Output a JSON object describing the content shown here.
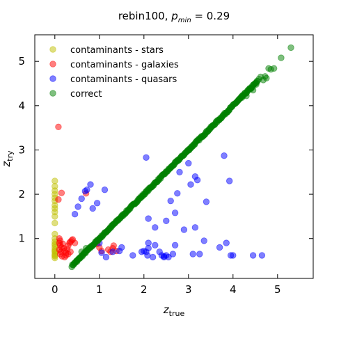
{
  "chart_data": {
    "type": "scatter",
    "title_main": "rebin100, ",
    "title_p": "p",
    "title_sub": "min",
    "title_val": " = 0.29",
    "xlabel_main": "z",
    "xlabel_sub": "true",
    "ylabel_main": "z",
    "ylabel_sub": "try",
    "xlim": [
      -0.45,
      5.8
    ],
    "ylim": [
      0.1,
      5.6
    ],
    "xticks": [
      0,
      1,
      2,
      3,
      4,
      5
    ],
    "yticks": [
      1,
      2,
      3,
      4,
      5
    ],
    "legend_position": "top-left",
    "grid": false,
    "series": [
      {
        "name": "contaminants - stars",
        "color": "#bfbf00",
        "points": [
          [
            0.0,
            2.3
          ],
          [
            0.0,
            2.18
          ],
          [
            0.0,
            2.08
          ],
          [
            0.0,
            2.0
          ],
          [
            0.0,
            1.92
          ],
          [
            0.0,
            1.85
          ],
          [
            0.0,
            1.75
          ],
          [
            0.0,
            1.68
          ],
          [
            0.0,
            1.6
          ],
          [
            0.0,
            1.5
          ],
          [
            0.0,
            1.35
          ],
          [
            0.0,
            1.1
          ],
          [
            0.0,
            1.0
          ],
          [
            0.0,
            0.93
          ],
          [
            0.0,
            0.85
          ],
          [
            0.0,
            0.8
          ],
          [
            0.0,
            0.75
          ],
          [
            0.0,
            0.7
          ],
          [
            0.0,
            0.65
          ],
          [
            0.0,
            0.6
          ],
          [
            0.0,
            0.56
          ],
          [
            0.0,
            0.72
          ],
          [
            0.0,
            0.88
          ],
          [
            0.0,
            0.62
          ]
        ]
      },
      {
        "name": "contaminants - galaxies",
        "color": "#ff0000",
        "points": [
          [
            0.08,
            3.52
          ],
          [
            0.08,
            1.88
          ],
          [
            0.15,
            2.03
          ],
          [
            0.1,
            1.0
          ],
          [
            0.12,
            0.95
          ],
          [
            0.1,
            0.9
          ],
          [
            0.12,
            0.85
          ],
          [
            0.15,
            0.8
          ],
          [
            0.1,
            0.75
          ],
          [
            0.14,
            0.7
          ],
          [
            0.12,
            0.65
          ],
          [
            0.16,
            0.6
          ],
          [
            0.18,
            0.88
          ],
          [
            0.2,
            0.78
          ],
          [
            0.22,
            0.72
          ],
          [
            0.25,
            0.68
          ],
          [
            0.28,
            0.76
          ],
          [
            0.3,
            0.84
          ],
          [
            0.33,
            0.9
          ],
          [
            0.35,
            0.93
          ],
          [
            0.38,
            0.96
          ],
          [
            0.4,
            0.98
          ],
          [
            0.45,
            0.9
          ],
          [
            0.25,
            0.62
          ],
          [
            0.3,
            0.65
          ],
          [
            0.35,
            0.7
          ],
          [
            0.22,
            0.58
          ],
          [
            0.95,
            0.88
          ],
          [
            1.0,
            0.8
          ],
          [
            1.05,
            0.72
          ],
          [
            1.2,
            0.75
          ],
          [
            1.25,
            0.7
          ],
          [
            1.3,
            0.78
          ],
          [
            1.32,
            0.84
          ],
          [
            1.38,
            0.72
          ],
          [
            0.7,
            2.02
          ]
        ]
      },
      {
        "name": "contaminants - quasars",
        "color": "#0000ff",
        "points": [
          [
            0.45,
            1.55
          ],
          [
            0.52,
            1.72
          ],
          [
            0.6,
            1.9
          ],
          [
            0.68,
            2.07
          ],
          [
            0.72,
            2.1
          ],
          [
            0.8,
            2.22
          ],
          [
            0.85,
            1.68
          ],
          [
            0.95,
            1.8
          ],
          [
            1.12,
            2.1
          ],
          [
            1.0,
            0.9
          ],
          [
            1.05,
            0.68
          ],
          [
            1.15,
            0.58
          ],
          [
            1.3,
            0.7
          ],
          [
            1.45,
            0.72
          ],
          [
            1.5,
            0.8
          ],
          [
            1.75,
            0.62
          ],
          [
            1.95,
            0.7
          ],
          [
            2.0,
            0.72
          ],
          [
            2.08,
            0.62
          ],
          [
            2.1,
            0.9
          ],
          [
            2.1,
            0.78
          ],
          [
            2.2,
            0.58
          ],
          [
            2.25,
            0.85
          ],
          [
            2.35,
            0.7
          ],
          [
            2.4,
            0.62
          ],
          [
            2.45,
            0.58
          ],
          [
            2.5,
            0.62
          ],
          [
            2.55,
            0.58
          ],
          [
            2.65,
            0.65
          ],
          [
            2.7,
            0.85
          ],
          [
            2.05,
            2.83
          ],
          [
            2.1,
            1.45
          ],
          [
            2.25,
            1.25
          ],
          [
            2.5,
            1.4
          ],
          [
            2.6,
            1.85
          ],
          [
            2.7,
            1.58
          ],
          [
            2.75,
            2.02
          ],
          [
            2.8,
            2.5
          ],
          [
            2.9,
            1.2
          ],
          [
            3.0,
            2.7
          ],
          [
            3.05,
            2.22
          ],
          [
            3.15,
            2.4
          ],
          [
            3.2,
            2.32
          ],
          [
            3.15,
            1.25
          ],
          [
            3.25,
            0.65
          ],
          [
            3.35,
            0.95
          ],
          [
            3.4,
            1.83
          ],
          [
            3.7,
            0.8
          ],
          [
            3.8,
            2.87
          ],
          [
            3.85,
            0.9
          ],
          [
            3.92,
            2.3
          ],
          [
            3.95,
            0.62
          ],
          [
            4.0,
            0.62
          ],
          [
            4.45,
            0.62
          ],
          [
            4.65,
            0.62
          ],
          [
            2.45,
            0.6
          ],
          [
            2.05,
            0.7
          ],
          [
            3.1,
            0.65
          ]
        ]
      },
      {
        "name": "correct",
        "color": "#008000",
        "line": {
          "x0": 0.38,
          "y0": 0.38,
          "x1": 4.55,
          "y1": 4.55,
          "count": 300,
          "jitter": 0.04
        },
        "points": [
          [
            4.58,
            4.6
          ],
          [
            4.62,
            4.65
          ],
          [
            4.68,
            4.58
          ],
          [
            4.72,
            4.66
          ],
          [
            4.75,
            4.62
          ],
          [
            4.8,
            4.84
          ],
          [
            4.85,
            4.82
          ],
          [
            4.92,
            4.84
          ],
          [
            5.08,
            5.08
          ],
          [
            5.3,
            5.31
          ],
          [
            4.3,
            4.22
          ],
          [
            4.45,
            4.35
          ],
          [
            4.52,
            4.48
          ],
          [
            4.4,
            4.38
          ],
          [
            4.2,
            4.18
          ],
          [
            0.55,
            0.55
          ],
          [
            0.6,
            0.7
          ],
          [
            0.7,
            0.78
          ],
          [
            0.5,
            0.48
          ]
        ]
      }
    ]
  }
}
